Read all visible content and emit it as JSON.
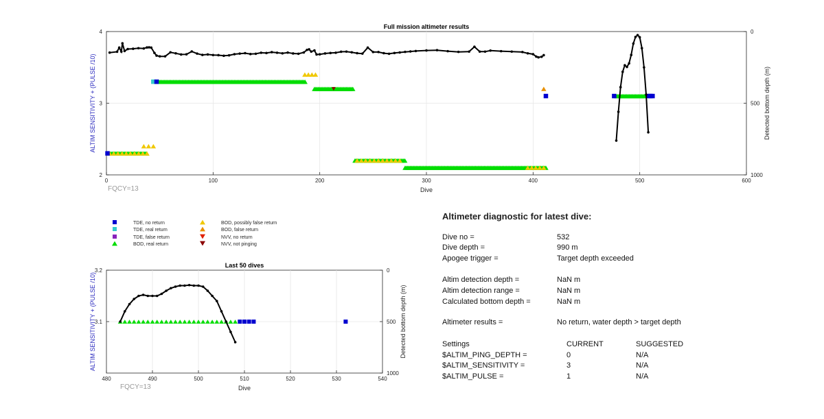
{
  "chart_data": [
    {
      "type": "scatter",
      "title": "Full mission altimeter results",
      "xlabel": "Dive",
      "ylabel": "ALTIM SENSITIVITY + (PULSE /10)",
      "y2label": "Detected bottom depth (m)",
      "xlim": [
        0,
        600
      ],
      "ylim": [
        2,
        4
      ],
      "y2lim": [
        1000,
        0
      ],
      "xticks": [
        0,
        100,
        200,
        300,
        400,
        500,
        600
      ],
      "yticks": [
        2,
        3,
        4
      ],
      "y2ticks": [
        0,
        500,
        1000
      ],
      "grid": true,
      "annotation": "FQCY=13",
      "bod_real_bands": [
        {
          "x": [
            3,
            38
          ],
          "y": 2.3
        },
        {
          "x": [
            47,
            187
          ],
          "y": 3.3
        },
        {
          "x": [
            195,
            231
          ],
          "y": 3.2
        },
        {
          "x": [
            233,
            280
          ],
          "y": 2.2
        },
        {
          "x": [
            280,
            412
          ],
          "y": 2.1
        },
        {
          "x": [
            478,
            505
          ],
          "y": 3.1
        }
      ],
      "bod_possibly_false": [
        {
          "x": [
            3,
            38
          ],
          "y": 2.3
        },
        {
          "x": [
            35,
            44
          ],
          "y": 2.4
        },
        {
          "x": [
            186,
            196
          ],
          "y": 3.4
        },
        {
          "x": [
            235,
            275
          ],
          "y": 2.2
        },
        {
          "x": [
            395,
            410
          ],
          "y": 2.1
        }
      ],
      "bod_false": [
        {
          "x": 410,
          "y": 3.2
        }
      ],
      "tde_no_return": [
        {
          "x": 1,
          "y": 2.3
        },
        {
          "x": 47,
          "y": 3.3
        },
        {
          "x": 412,
          "y": 3.1
        },
        {
          "x": 476,
          "y": 3.1
        },
        {
          "x": 508,
          "y": 3.1
        },
        {
          "x": 510,
          "y": 3.1
        },
        {
          "x": 512,
          "y": 3.1
        }
      ],
      "tde_real_return": [
        {
          "x": 44,
          "y": 3.3
        }
      ],
      "nvv_not_pinging": [
        {
          "x": 213,
          "y": 3.2
        }
      ],
      "bottom_depth": {
        "x": [
          3,
          10,
          12,
          14,
          15,
          17,
          20,
          25,
          30,
          35,
          38,
          40,
          42,
          45,
          47,
          50,
          55,
          60,
          65,
          70,
          75,
          80,
          85,
          90,
          95,
          100,
          105,
          110,
          115,
          120,
          125,
          130,
          135,
          140,
          145,
          150,
          155,
          160,
          165,
          170,
          175,
          180,
          185,
          188,
          190,
          192,
          195,
          197,
          200,
          205,
          210,
          215,
          220,
          225,
          230,
          235,
          240,
          245,
          250,
          255,
          260,
          265,
          270,
          275,
          280,
          285,
          290,
          300,
          310,
          320,
          330,
          340,
          345,
          350,
          355,
          360,
          370,
          380,
          390,
          395,
          400,
          403,
          405,
          408,
          410
        ],
        "y": [
          147,
          141,
          112,
          140,
          82,
          136,
          122,
          120,
          116,
          118,
          111,
          110,
          112,
          149,
          168,
          173,
          173,
          145,
          152,
          160,
          159,
          139,
          154,
          163,
          160,
          164,
          165,
          169,
          166,
          158,
          154,
          151,
          157,
          155,
          148,
          150,
          144,
          148,
          152,
          147,
          153,
          155,
          146,
          128,
          124,
          140,
          132,
          160,
          159,
          153,
          150,
          148,
          141,
          140,
          145,
          151,
          154,
          112,
          143,
          143,
          151,
          155,
          150,
          146,
          142,
          139,
          136,
          132,
          130,
          137,
          142,
          140,
          106,
          140,
          140,
          133,
          137,
          140,
          143,
          152,
          158,
          175,
          180,
          176,
          165
        ]
      },
      "bottom_depth_recent": {
        "x": [
          478,
          480,
          482,
          484,
          486,
          488,
          490,
          492,
          494,
          496,
          498,
          500,
          502,
          504,
          506,
          508
        ],
        "y": [
          761,
          560,
          388,
          281,
          235,
          247,
          222,
          163,
          84,
          38,
          25,
          40,
          116,
          250,
          440,
          703
        ]
      }
    },
    {
      "type": "scatter",
      "title": "Last 50 dives",
      "xlabel": "Dive",
      "ylabel": "ALTIM SENSITIVITY + (PULSE /10)",
      "y2label": "Detected bottom depth (m)",
      "xlim": [
        480,
        540
      ],
      "ylim": [
        3.0,
        3.2
      ],
      "y2lim": [
        1000,
        0
      ],
      "xticks": [
        480,
        490,
        500,
        510,
        520,
        530,
        540
      ],
      "yticks": [
        3.1,
        3.2
      ],
      "y2ticks": [
        0,
        500,
        1000
      ],
      "grid": true,
      "annotation": "FQCY=13",
      "bod_real": {
        "x": [
          483,
          484,
          485,
          486,
          487,
          488,
          489,
          490,
          491,
          492,
          493,
          494,
          495,
          496,
          497,
          498,
          499,
          500,
          501,
          502,
          503,
          504,
          505,
          506,
          507,
          508
        ],
        "y": 3.1
      },
      "tde_no_return": [
        {
          "x": 509,
          "y": 3.1
        },
        {
          "x": 510,
          "y": 3.1
        },
        {
          "x": 511,
          "y": 3.1
        },
        {
          "x": 512,
          "y": 3.1
        },
        {
          "x": 532,
          "y": 3.1
        }
      ],
      "bottom_depth": {
        "x": [
          483,
          484,
          485,
          486,
          487,
          488,
          489,
          490,
          491,
          492,
          493,
          494,
          495,
          496,
          497,
          498,
          499,
          500,
          501,
          502,
          503,
          504,
          505,
          506,
          507,
          508
        ],
        "y": [
          500,
          400,
          330,
          280,
          250,
          240,
          250,
          250,
          250,
          230,
          200,
          175,
          160,
          150,
          150,
          145,
          150,
          150,
          160,
          200,
          250,
          300,
          400,
          500,
          600,
          700
        ]
      }
    }
  ],
  "legend": [
    {
      "label": "TDE, no return",
      "marker": "square",
      "color": "#0000d0"
    },
    {
      "label": "TDE, real return",
      "marker": "square",
      "color": "#33cccc"
    },
    {
      "label": "TDE, false return",
      "marker": "square",
      "color": "#8822bb"
    },
    {
      "label": "BOD, real return",
      "marker": "triangle-up",
      "color": "#00dd00"
    },
    {
      "label": "BOD, possibly false return",
      "marker": "triangle-up",
      "color": "#f0c800"
    },
    {
      "label": "BOD, false return",
      "marker": "triangle-up",
      "color": "#e89000"
    },
    {
      "label": "NVV, no return",
      "marker": "triangle-down",
      "color": "#e02000"
    },
    {
      "label": "NVV, not pinging",
      "marker": "triangle-down",
      "color": "#8b0000"
    }
  ],
  "diagnostic": {
    "title": "Altimeter diagnostic for latest dive:",
    "rows": [
      {
        "label": "Dive no =",
        "value": "532"
      },
      {
        "label": "Dive depth =",
        "value": "990 m"
      },
      {
        "label": "Apogee trigger =",
        "value": "Target depth exceeded"
      },
      {
        "label": "Altim detection depth =",
        "value": "NaN m"
      },
      {
        "label": "Altim detection range =",
        "value": "NaN m"
      },
      {
        "label": "Calculated bottom depth =",
        "value": "NaN m"
      },
      {
        "label": "Altimeter results =",
        "value": "No return, water depth > target depth"
      }
    ],
    "settings": {
      "header": [
        "Settings",
        "CURRENT",
        "SUGGESTED"
      ],
      "rows": [
        {
          "name": "$ALTIM_PING_DEPTH =",
          "current": "0",
          "suggested": "N/A"
        },
        {
          "name": "$ALTIM_SENSITIVITY =",
          "current": "3",
          "suggested": "N/A"
        },
        {
          "name": "$ALTIM_PULSE =",
          "current": "1",
          "suggested": "N/A"
        }
      ]
    }
  },
  "colors": {
    "axis": "#262626",
    "grid": "#e6e6e6",
    "ylabel": "#2b2bbf",
    "depth_line": "#000000",
    "bod_real": "#00dd00",
    "bod_possibly_false": "#f0c800",
    "bod_false": "#e89000",
    "tde_no_return": "#0000d0",
    "tde_real_return": "#33cccc",
    "nvv_not_pinging": "#8b0000"
  }
}
